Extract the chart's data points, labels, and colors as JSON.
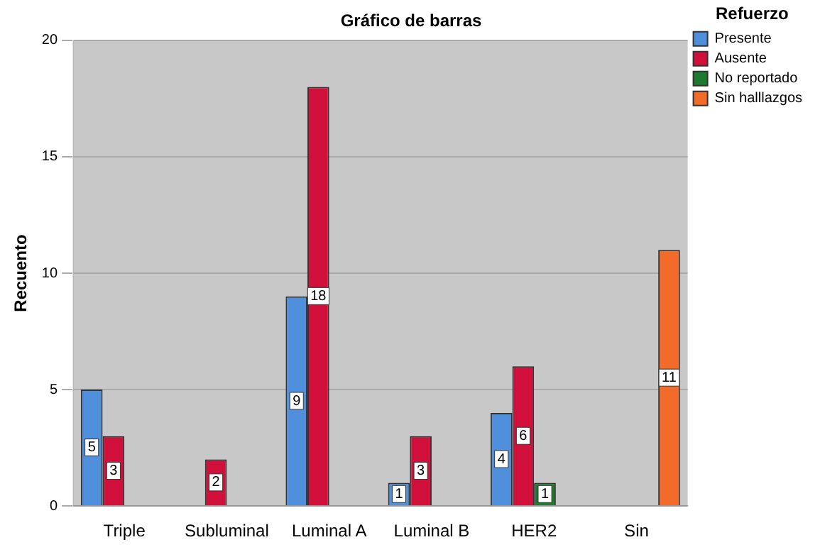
{
  "chart_data": {
    "type": "bar",
    "title": "Gráfico de barras",
    "ylabel": "Recuento",
    "legend_title": "Refuerzo",
    "categories": [
      "Triple",
      "Subluminal",
      "Luminal A",
      "Luminal B",
      "HER2",
      "Sin"
    ],
    "series": [
      {
        "name": "Presente",
        "color": "#4f8fdc",
        "values": [
          5,
          null,
          9,
          1,
          4,
          null
        ]
      },
      {
        "name": "Ausente",
        "color": "#d0103a",
        "values": [
          3,
          2,
          18,
          3,
          6,
          null
        ]
      },
      {
        "name": "No reportado",
        "color": "#1e7a2e",
        "values": [
          null,
          null,
          null,
          null,
          1,
          null
        ]
      },
      {
        "name": "Sin halllazgos",
        "color": "#f26b2a",
        "values": [
          null,
          null,
          null,
          null,
          null,
          11
        ]
      }
    ],
    "ylim": [
      0,
      20
    ],
    "yticks": [
      0,
      5,
      10,
      15,
      20
    ],
    "grid": "y",
    "legend": "right",
    "data_labels": true
  }
}
